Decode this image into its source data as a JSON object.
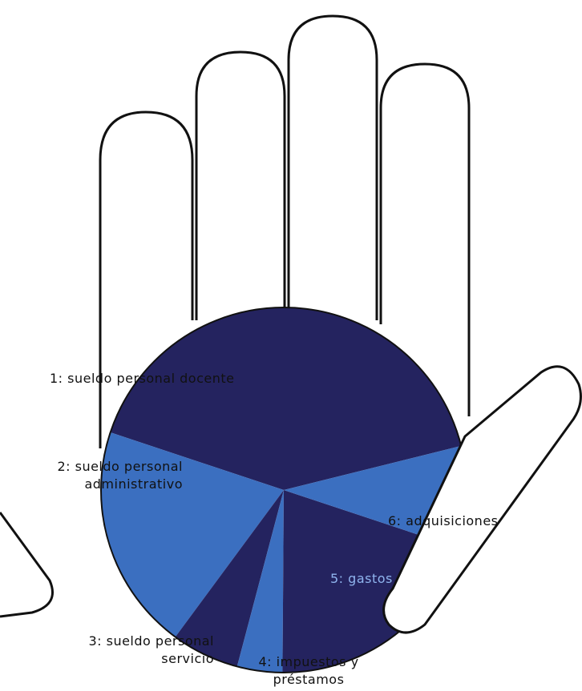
{
  "chart_data": {
    "type": "pie",
    "categories": [
      "1: sueldo personal docente",
      "2: sueldo personal administrativo",
      "3: sueldo personal servicio",
      "4: impuestos y préstamos",
      "5: gastos",
      "6: adquisiciones"
    ],
    "values": [
      41,
      20,
      6,
      4,
      20,
      9
    ],
    "colors": [
      "#24235f",
      "#3b6fc0",
      "#24235f",
      "#3b6fc0",
      "#24235f",
      "#3b6fc0"
    ]
  }
}
